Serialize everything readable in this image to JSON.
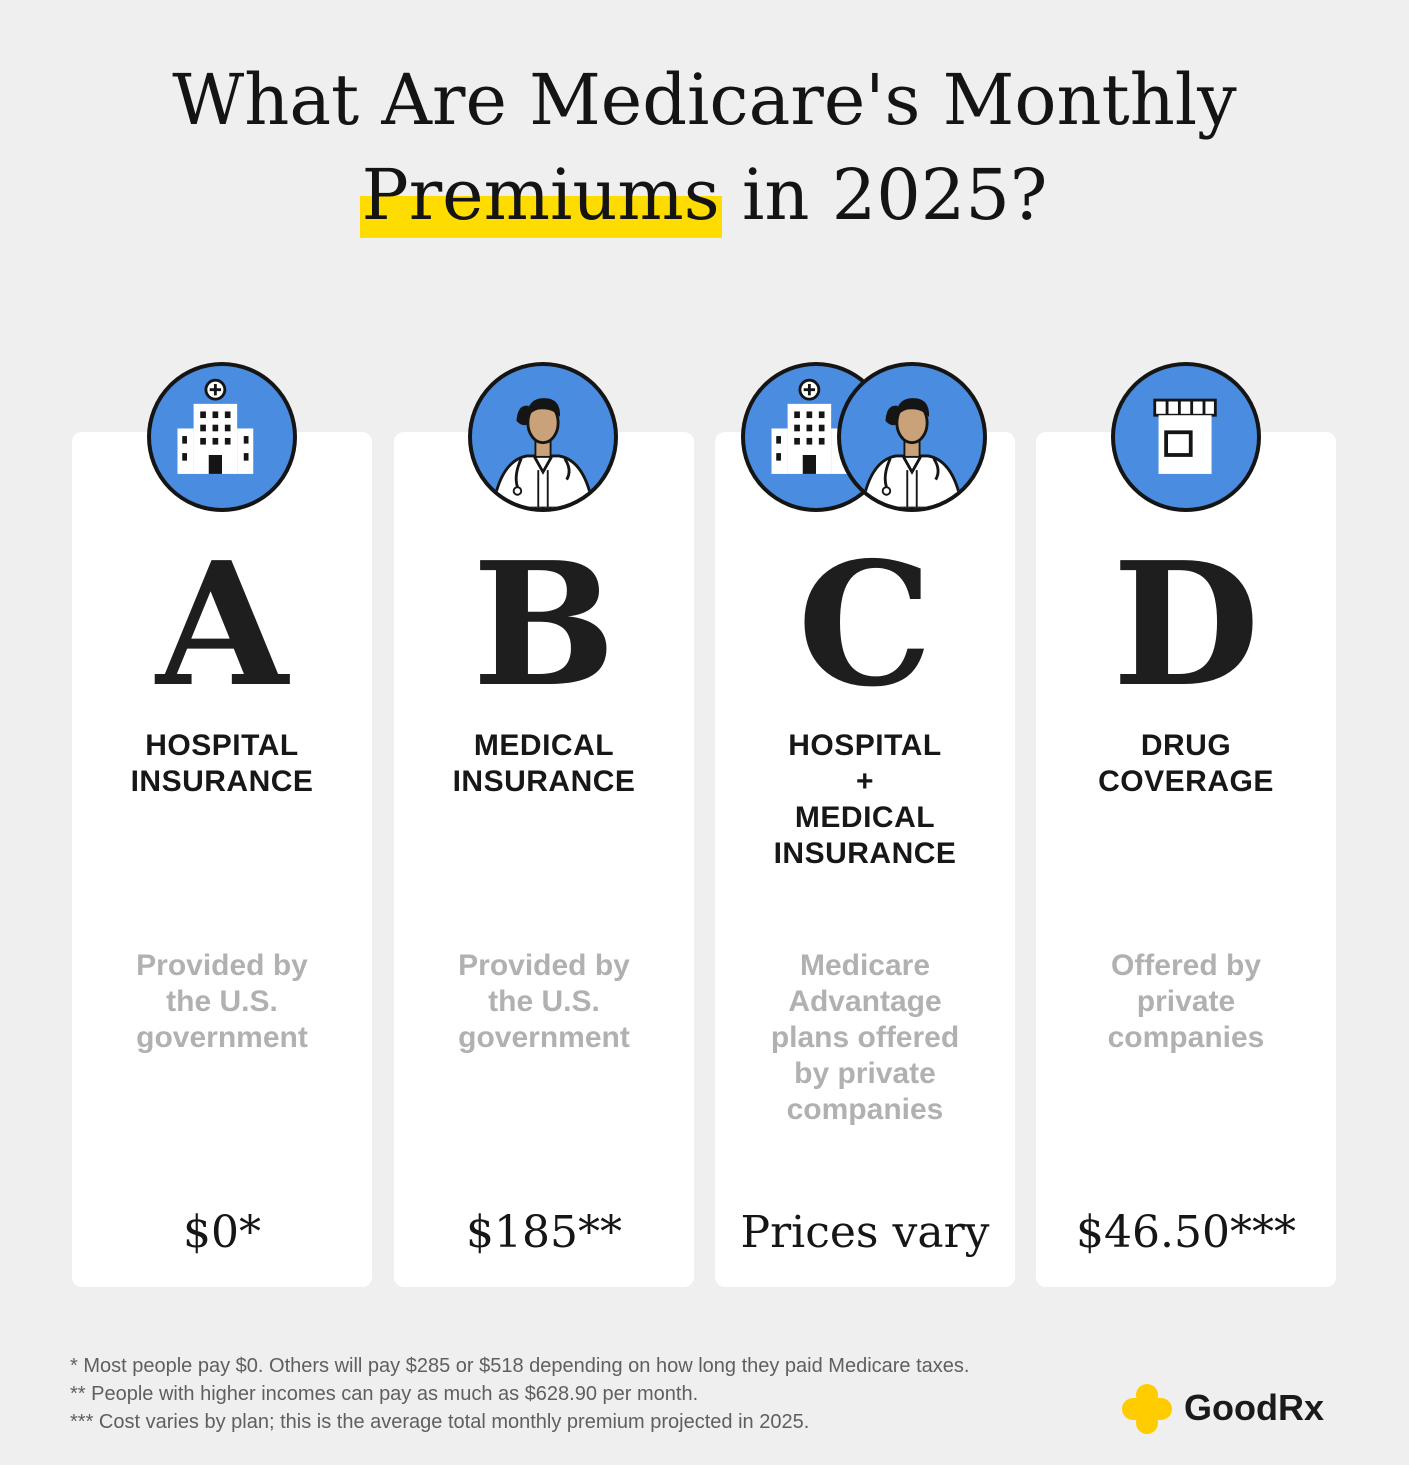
{
  "title": {
    "line1": "What Are Medicare's Monthly",
    "highlight": "Premiums",
    "line2_rest": " in 2025?"
  },
  "colors": {
    "highlight": "#ffdc00",
    "icon_bg": "#4a8de0",
    "card_bg": "#ffffff",
    "page_bg": "#efefef",
    "logo_yellow": "#ffcc00"
  },
  "parts": [
    {
      "letter": "A",
      "cat_lines": [
        "HOSPITAL",
        "INSURANCE"
      ],
      "desc_lines": [
        "Provided by",
        "the U.S.",
        "government"
      ],
      "price": "$0*",
      "icons": [
        "hospital-icon"
      ]
    },
    {
      "letter": "B",
      "cat_lines": [
        "MEDICAL",
        "INSURANCE"
      ],
      "desc_lines": [
        "Provided by",
        "the U.S.",
        "government"
      ],
      "price": "$185**",
      "icons": [
        "doctor-icon"
      ]
    },
    {
      "letter": "C",
      "cat_lines": [
        "HOSPITAL",
        "+",
        "MEDICAL",
        "INSURANCE"
      ],
      "desc_lines": [
        "Medicare",
        "Advantage",
        "plans offered",
        "by private",
        "companies"
      ],
      "price": "Prices vary",
      "icons": [
        "hospital-icon",
        "doctor-icon"
      ]
    },
    {
      "letter": "D",
      "cat_lines": [
        "DRUG",
        "COVERAGE"
      ],
      "desc_lines": [
        "Offered by",
        "private",
        "companies"
      ],
      "price": "$46.50***",
      "icons": [
        "pill-bottle-icon"
      ]
    }
  ],
  "footnotes": [
    "* Most people pay $0. Others will pay $285 or $518 depending on how long they paid Medicare taxes.",
    "** People with higher incomes can pay as much as $628.90 per month.",
    "*** Cost varies by plan; this is the average total monthly premium projected in 2025."
  ],
  "logo": {
    "text": "GoodRx",
    "icon": "goodrx-plus-icon"
  }
}
